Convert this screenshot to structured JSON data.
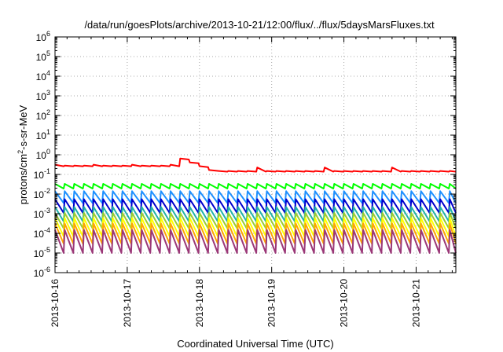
{
  "chart_data": {
    "type": "line",
    "title": "/data/run/goesPlots/archive/2013-10-21/12:00/flux/../flux/5daysMarsFluxes.txt",
    "xlabel": "Coordinated Universal Time (UTC)",
    "ylabel": {
      "base": "protons/cm",
      "sup": "2",
      "rest": "-s-sr-MeV"
    },
    "y_scale": "log",
    "ylim": [
      1e-06,
      1000000.0
    ],
    "y_ticks": [
      {
        "value": 1e-06,
        "base": "10",
        "exp": "-6"
      },
      {
        "value": 1e-05,
        "base": "10",
        "exp": "-5"
      },
      {
        "value": 0.0001,
        "base": "10",
        "exp": "-4"
      },
      {
        "value": 0.001,
        "base": "10",
        "exp": "-3"
      },
      {
        "value": 0.01,
        "base": "10",
        "exp": "-2"
      },
      {
        "value": 0.1,
        "base": "10",
        "exp": "-1"
      },
      {
        "value": 1,
        "base": "10",
        "exp": "0"
      },
      {
        "value": 10.0,
        "base": "10",
        "exp": "1"
      },
      {
        "value": 100.0,
        "base": "10",
        "exp": "2"
      },
      {
        "value": 1000.0,
        "base": "10",
        "exp": "3"
      },
      {
        "value": 10000.0,
        "base": "10",
        "exp": "4"
      },
      {
        "value": 100000.0,
        "base": "10",
        "exp": "5"
      },
      {
        "value": 1000000.0,
        "base": "10",
        "exp": "6"
      }
    ],
    "xlim": [
      "2013-10-16",
      "2013-10-21T13:12"
    ],
    "x_ticks": [
      "2013-10-16",
      "2013-10-17",
      "2013-10-18",
      "2013-10-19",
      "2013-10-20",
      "2013-10-21"
    ],
    "grid": true,
    "series": [
      {
        "color": "#ff0000",
        "base": 0.28,
        "low": 0.26,
        "period_hours": 3.2,
        "spike": {
          "at": "2013-10-17T16:00",
          "value": 0.8,
          "decay_to": 0.15
        }
      },
      {
        "color": "#00ff00",
        "base": 0.033,
        "low": 0.019,
        "period_hours": 3.2
      },
      {
        "color": "#1e90ff",
        "base": 0.014,
        "low": 0.0035,
        "period_hours": 3.2
      },
      {
        "color": "#0000cd",
        "base": 0.0055,
        "low": 0.0011,
        "period_hours": 3.2
      },
      {
        "color": "#20b2aa",
        "base": 0.0022,
        "low": 0.0004,
        "period_hours": 3.2
      },
      {
        "color": "#9acd32",
        "base": 0.0011,
        "low": 0.00018,
        "period_hours": 3.2
      },
      {
        "color": "#ffff00",
        "base": 0.0006,
        "low": 7e-05,
        "period_hours": 3.2
      },
      {
        "color": "#ffa500",
        "base": 0.00032,
        "low": 3e-05,
        "period_hours": 3.2
      },
      {
        "color": "#9b3878",
        "base": 0.00015,
        "low": 1e-05,
        "period_hours": 3.2
      }
    ]
  }
}
